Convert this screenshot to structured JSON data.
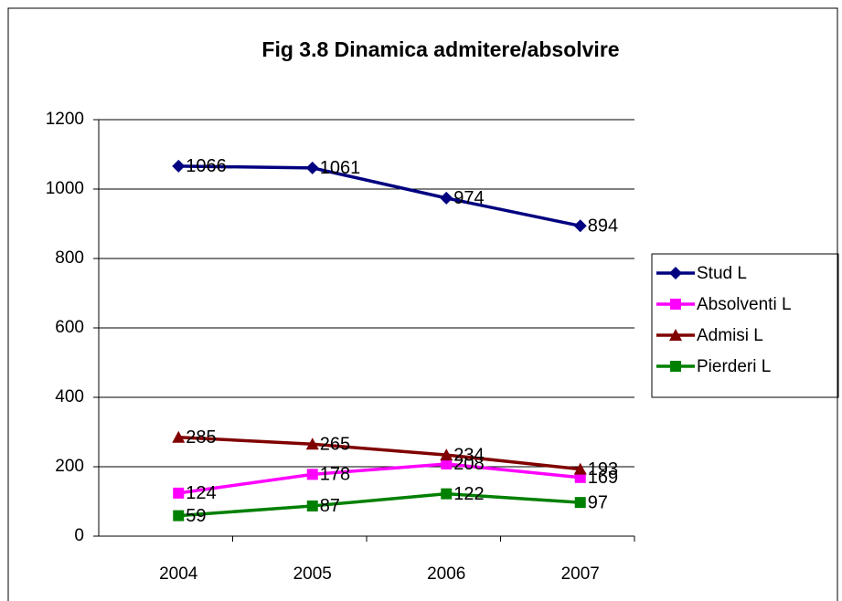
{
  "chart_data": {
    "type": "line",
    "title": "Fig 3.8 Dinamica admitere/absolvire",
    "categories": [
      "2004",
      "2005",
      "2006",
      "2007"
    ],
    "series": [
      {
        "name": "Stud L",
        "color": "#000080",
        "marker": "diamond",
        "values": [
          1066,
          1061,
          974,
          894
        ]
      },
      {
        "name": "Absolventi L",
        "color": "#ff00ff",
        "marker": "square",
        "values": [
          124,
          178,
          208,
          169
        ]
      },
      {
        "name": "Admisi L",
        "color": "#800000",
        "marker": "triangle",
        "values": [
          285,
          265,
          234,
          193
        ]
      },
      {
        "name": "Pierderi L",
        "color": "#008000",
        "marker": "square",
        "values": [
          59,
          87,
          122,
          97
        ]
      }
    ],
    "ylim": [
      0,
      1200
    ],
    "yticks": [
      0,
      200,
      400,
      600,
      800,
      1000,
      1200
    ],
    "grid": true,
    "legend": "right"
  }
}
